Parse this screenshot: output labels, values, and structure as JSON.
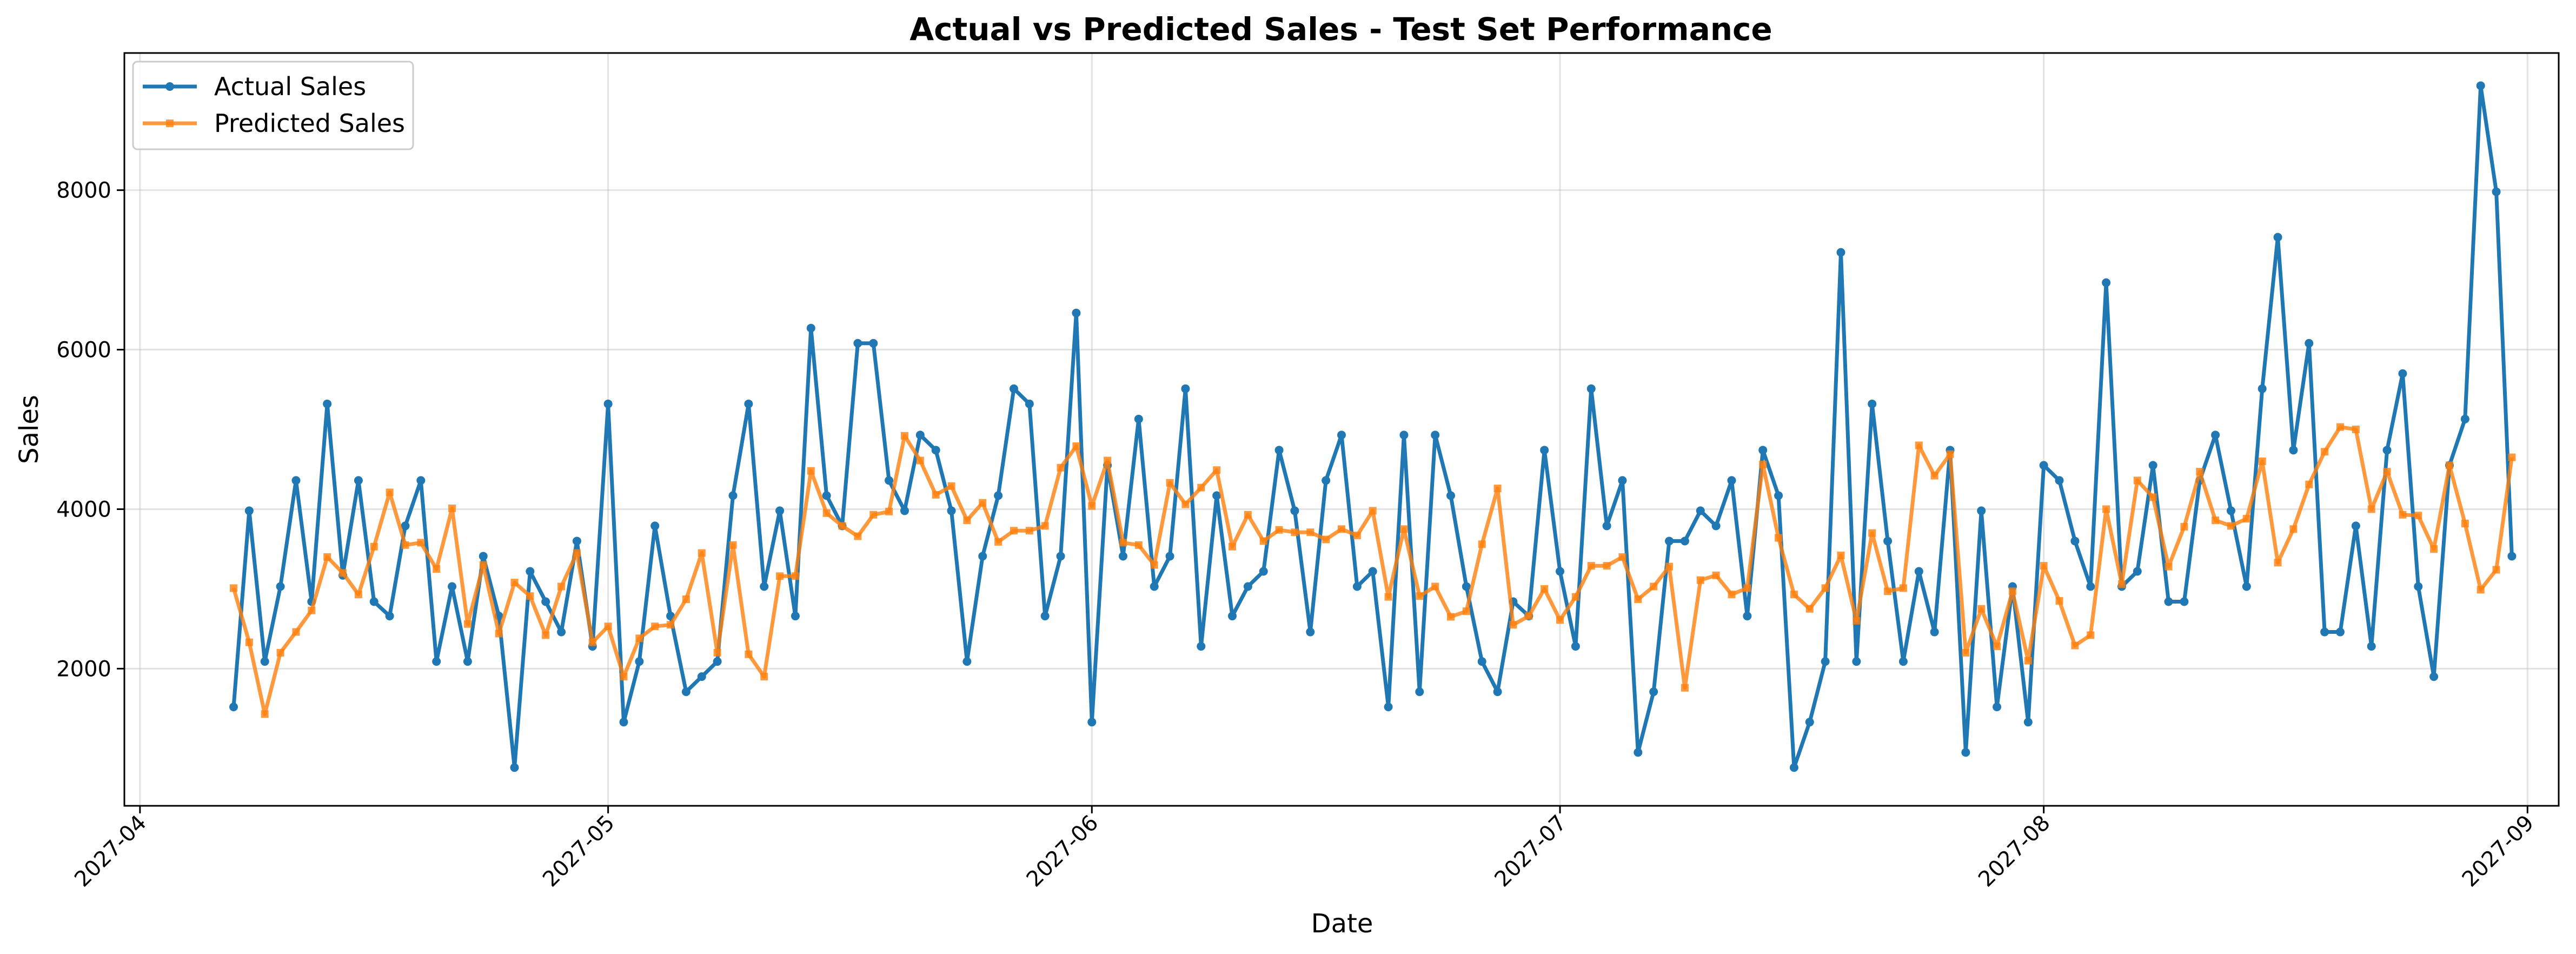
{
  "chart_data": {
    "type": "line",
    "title": "Actual vs Predicted Sales - Test Set Performance",
    "xlabel": "Date",
    "ylabel": "Sales",
    "x_ticks": [
      "2027-04",
      "2027-05",
      "2027-06",
      "2027-07",
      "2027-08",
      "2027-09"
    ],
    "x_range": [
      "2027-03-31",
      "2027-09-03"
    ],
    "y_ticks": [
      2000,
      4000,
      6000,
      8000
    ],
    "ylim": [
      280,
      9720
    ],
    "grid": true,
    "legend_position": "top-left",
    "x_start": "2027-04-07",
    "series": [
      {
        "name": "Actual Sales",
        "color": "#1f77b4",
        "marker": "circle",
        "values": [
          1520,
          3980,
          2090,
          3030,
          4360,
          2840,
          5320,
          3170,
          4360,
          2840,
          2660,
          3790,
          4360,
          2090,
          3030,
          2090,
          3410,
          2660,
          760,
          3220,
          2840,
          2460,
          3600,
          2280,
          5320,
          1330,
          2090,
          3790,
          2660,
          1710,
          1900,
          2090,
          4170,
          5320,
          3030,
          3980,
          2660,
          6270,
          4170,
          3790,
          6080,
          6080,
          4360,
          3980,
          4930,
          4740,
          3980,
          2090,
          3410,
          4170,
          5510,
          5320,
          2660,
          3410,
          6460,
          1330,
          4550,
          3410,
          5130,
          3030,
          3410,
          5510,
          2280,
          4170,
          2660,
          3030,
          3220,
          4740,
          3980,
          2460,
          4360,
          4930,
          3030,
          3220,
          1520,
          4930,
          1710,
          4930,
          4170,
          3030,
          2090,
          1710,
          2840,
          2660,
          4740,
          3220,
          2280,
          5510,
          3790,
          4360,
          950,
          1710,
          3600,
          3600,
          3980,
          3790,
          4360,
          2660,
          4740,
          4170,
          760,
          1330,
          2090,
          7220,
          2090,
          5320,
          3600,
          2090,
          3220,
          2460,
          4740,
          950,
          3980,
          1520,
          3030,
          1330,
          4550,
          4360,
          3600,
          3030,
          6840,
          3030,
          3220,
          4550,
          2840,
          2840,
          4360,
          4930,
          3980,
          3030,
          5510,
          7410,
          4740,
          6080,
          2460,
          2460,
          3790,
          2280,
          4740,
          5700,
          3030,
          1900,
          4550,
          5130,
          9310,
          7980,
          3410
        ]
      },
      {
        "name": "Predicted Sales",
        "color": "#ff7f0e",
        "marker": "square",
        "values": [
          3010,
          2330,
          1430,
          2200,
          2460,
          2730,
          3400,
          3200,
          2930,
          3530,
          4210,
          3550,
          3580,
          3250,
          4010,
          2560,
          3300,
          2440,
          3080,
          2910,
          2420,
          3030,
          3450,
          2330,
          2530,
          1900,
          2380,
          2530,
          2550,
          2870,
          3450,
          2200,
          3550,
          2180,
          1900,
          3160,
          3160,
          4480,
          3950,
          3790,
          3660,
          3930,
          3970,
          4920,
          4610,
          4180,
          4290,
          3860,
          4080,
          3590,
          3730,
          3730,
          3790,
          4520,
          4790,
          4040,
          4610,
          3580,
          3550,
          3300,
          4330,
          4060,
          4270,
          4490,
          3530,
          3930,
          3600,
          3740,
          3710,
          3710,
          3620,
          3750,
          3670,
          3980,
          2900,
          3750,
          2910,
          3030,
          2650,
          2720,
          3560,
          4260,
          2550,
          2660,
          3000,
          2610,
          2900,
          3290,
          3290,
          3400,
          2870,
          3030,
          3280,
          1760,
          3110,
          3170,
          2930,
          3010,
          4560,
          3640,
          2930,
          2750,
          3010,
          3420,
          2600,
          3700,
          2970,
          3010,
          4800,
          4420,
          4690,
          2200,
          2750,
          2280,
          2970,
          2100,
          3290,
          2850,
          2290,
          2420,
          4000,
          3060,
          4360,
          4150,
          3280,
          3780,
          4470,
          3860,
          3790,
          3880,
          4600,
          3330,
          3750,
          4310,
          4720,
          5030,
          5000,
          4000,
          4470,
          3930,
          3920,
          3500,
          4550,
          3820,
          2990,
          3240,
          4650
        ]
      }
    ]
  }
}
